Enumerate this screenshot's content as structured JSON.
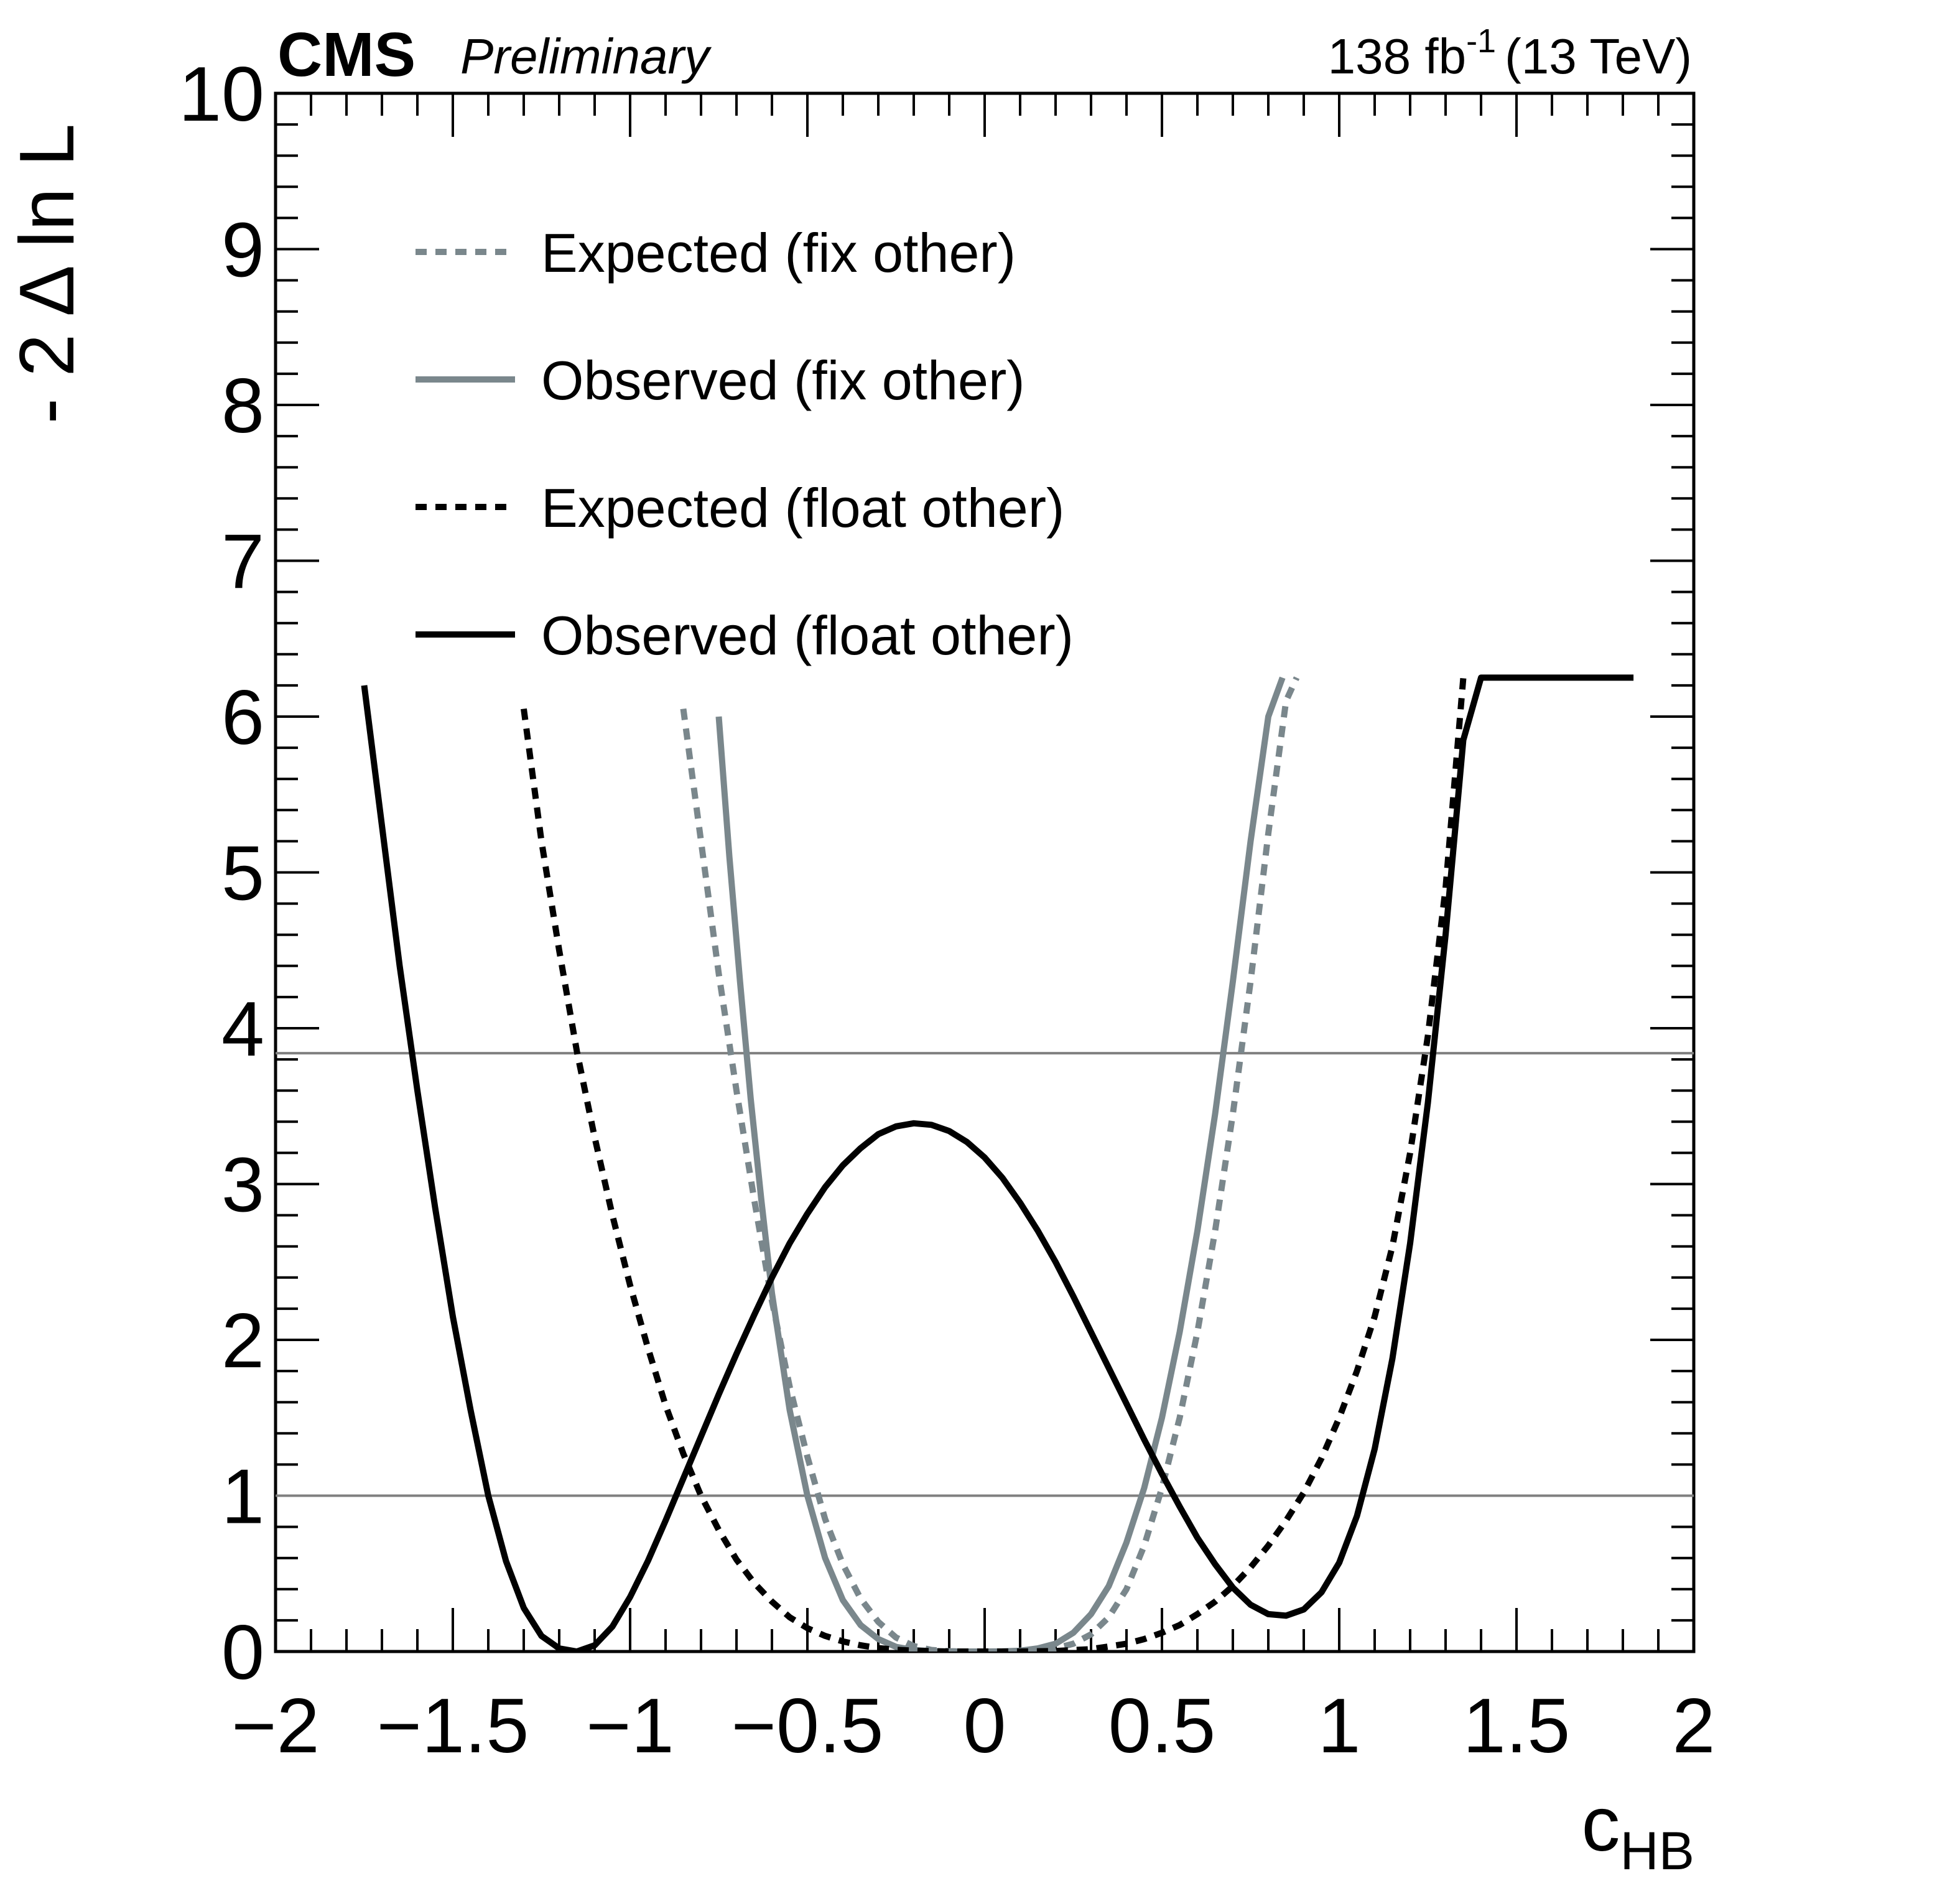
{
  "header": {
    "experiment": "CMS",
    "status": "Preliminary",
    "lumi_value": "138 fb",
    "lumi_exponent": "-1",
    "energy": "(13 TeV)"
  },
  "chart_data": {
    "type": "line",
    "xlabel_main": "c",
    "xlabel_sub": "HB",
    "ylabel": "- 2 Δ ln L",
    "xlim": [
      -2,
      2
    ],
    "ylim": [
      0,
      10
    ],
    "x_tick_labels": [
      "−2",
      "−1.5",
      "−1",
      "−0.5",
      "0",
      "0.5",
      "1",
      "1.5",
      "2"
    ],
    "y_tick_labels": [
      "0",
      "1",
      "2",
      "3",
      "4",
      "5",
      "6",
      "7",
      "8",
      "9",
      "10"
    ],
    "reference_lines": [
      1.0,
      3.84
    ],
    "grid": false,
    "legend_position": "top-left",
    "colors": {
      "fix_other": "#7a878c",
      "float_other": "#000000",
      "reference": "#808080"
    },
    "series": [
      {
        "name": "Expected (fix other)",
        "color": "#7a878c",
        "dashed": true,
        "x": [
          -0.85,
          -0.8,
          -0.75,
          -0.7,
          -0.65,
          -0.6,
          -0.55,
          -0.5,
          -0.45,
          -0.4,
          -0.35,
          -0.3,
          -0.25,
          -0.2,
          -0.15,
          -0.1,
          -0.05,
          0.0,
          0.05,
          0.1,
          0.15,
          0.2,
          0.25,
          0.3,
          0.35,
          0.4,
          0.45,
          0.5,
          0.55,
          0.6,
          0.65,
          0.7,
          0.75,
          0.8,
          0.85,
          0.88
        ],
        "y": [
          6.05,
          5.2,
          4.35,
          3.6,
          2.9,
          2.25,
          1.7,
          1.25,
          0.85,
          0.56,
          0.34,
          0.19,
          0.09,
          0.035,
          0.01,
          0.002,
          0.0,
          0.0,
          0.0,
          0.002,
          0.006,
          0.02,
          0.05,
          0.11,
          0.22,
          0.4,
          0.68,
          1.05,
          1.5,
          2.05,
          2.7,
          3.45,
          4.3,
          5.25,
          6.1,
          6.25
        ]
      },
      {
        "name": "Observed (fix other)",
        "color": "#7a878c",
        "dashed": false,
        "x": [
          -0.75,
          -0.72,
          -0.69,
          -0.66,
          -0.63,
          -0.6,
          -0.55,
          -0.5,
          -0.45,
          -0.4,
          -0.35,
          -0.3,
          -0.25,
          -0.2,
          -0.15,
          -0.1,
          -0.05,
          0.0,
          0.05,
          0.1,
          0.15,
          0.2,
          0.25,
          0.3,
          0.35,
          0.4,
          0.45,
          0.5,
          0.55,
          0.6,
          0.65,
          0.7,
          0.75,
          0.8,
          0.84
        ],
        "y": [
          6.0,
          5.1,
          4.3,
          3.55,
          2.9,
          2.3,
          1.55,
          1.0,
          0.6,
          0.33,
          0.17,
          0.08,
          0.03,
          0.01,
          0.002,
          0.0,
          0.0,
          0.0,
          0.001,
          0.005,
          0.02,
          0.05,
          0.12,
          0.24,
          0.42,
          0.7,
          1.05,
          1.5,
          2.05,
          2.7,
          3.45,
          4.3,
          5.2,
          6.0,
          6.25
        ]
      },
      {
        "name": "Expected (float other)",
        "color": "#000000",
        "dashed": true,
        "x": [
          -1.3,
          -1.25,
          -1.2,
          -1.15,
          -1.1,
          -1.05,
          -1.0,
          -0.95,
          -0.9,
          -0.85,
          -0.8,
          -0.75,
          -0.7,
          -0.65,
          -0.6,
          -0.55,
          -0.5,
          -0.45,
          -0.4,
          -0.35,
          -0.3,
          -0.25,
          -0.2,
          -0.1,
          0.0,
          0.1,
          0.2,
          0.3,
          0.4,
          0.45,
          0.5,
          0.55,
          0.6,
          0.65,
          0.7,
          0.75,
          0.8,
          0.85,
          0.9,
          0.95,
          1.0,
          1.05,
          1.1,
          1.15,
          1.2,
          1.25,
          1.3,
          1.35
        ],
        "y": [
          6.05,
          5.2,
          4.5,
          3.85,
          3.3,
          2.8,
          2.35,
          1.95,
          1.58,
          1.27,
          1.0,
          0.78,
          0.59,
          0.44,
          0.32,
          0.22,
          0.15,
          0.1,
          0.065,
          0.04,
          0.022,
          0.011,
          0.005,
          0.0,
          0.0,
          0.0,
          0.003,
          0.015,
          0.05,
          0.08,
          0.12,
          0.17,
          0.24,
          0.32,
          0.42,
          0.54,
          0.68,
          0.84,
          1.02,
          1.24,
          1.5,
          1.8,
          2.15,
          2.6,
          3.2,
          3.95,
          4.9,
          6.25
        ]
      },
      {
        "name": "Observed (float other)",
        "color": "#000000",
        "dashed": false,
        "x": [
          -1.75,
          -1.7,
          -1.65,
          -1.6,
          -1.55,
          -1.5,
          -1.45,
          -1.4,
          -1.35,
          -1.3,
          -1.25,
          -1.2,
          -1.15,
          -1.1,
          -1.05,
          -1.0,
          -0.95,
          -0.9,
          -0.85,
          -0.8,
          -0.75,
          -0.7,
          -0.65,
          -0.6,
          -0.55,
          -0.5,
          -0.45,
          -0.4,
          -0.35,
          -0.3,
          -0.25,
          -0.2,
          -0.15,
          -0.1,
          -0.05,
          0.0,
          0.05,
          0.1,
          0.15,
          0.2,
          0.25,
          0.3,
          0.35,
          0.4,
          0.45,
          0.5,
          0.55,
          0.6,
          0.65,
          0.7,
          0.75,
          0.8,
          0.85,
          0.9,
          0.95,
          1.0,
          1.05,
          1.1,
          1.15,
          1.2,
          1.25,
          1.3,
          1.35,
          1.4,
          1.45,
          1.5,
          1.55,
          1.6,
          1.65,
          1.7,
          1.75,
          1.8,
          1.83
        ],
        "y": [
          6.2,
          5.3,
          4.4,
          3.6,
          2.85,
          2.15,
          1.55,
          1.0,
          0.58,
          0.28,
          0.1,
          0.02,
          0.0,
          0.04,
          0.16,
          0.35,
          0.58,
          0.84,
          1.11,
          1.38,
          1.65,
          1.91,
          2.16,
          2.4,
          2.62,
          2.81,
          2.98,
          3.12,
          3.23,
          3.32,
          3.37,
          3.39,
          3.38,
          3.34,
          3.27,
          3.17,
          3.04,
          2.88,
          2.7,
          2.5,
          2.28,
          2.05,
          1.82,
          1.59,
          1.36,
          1.14,
          0.93,
          0.73,
          0.56,
          0.41,
          0.3,
          0.24,
          0.23,
          0.27,
          0.38,
          0.57,
          0.87,
          1.3,
          1.88,
          2.62,
          3.52,
          4.6,
          5.85,
          6.25,
          6.25,
          6.25,
          6.25,
          6.25,
          6.25,
          6.25,
          6.25,
          6.25,
          6.25
        ]
      }
    ]
  }
}
